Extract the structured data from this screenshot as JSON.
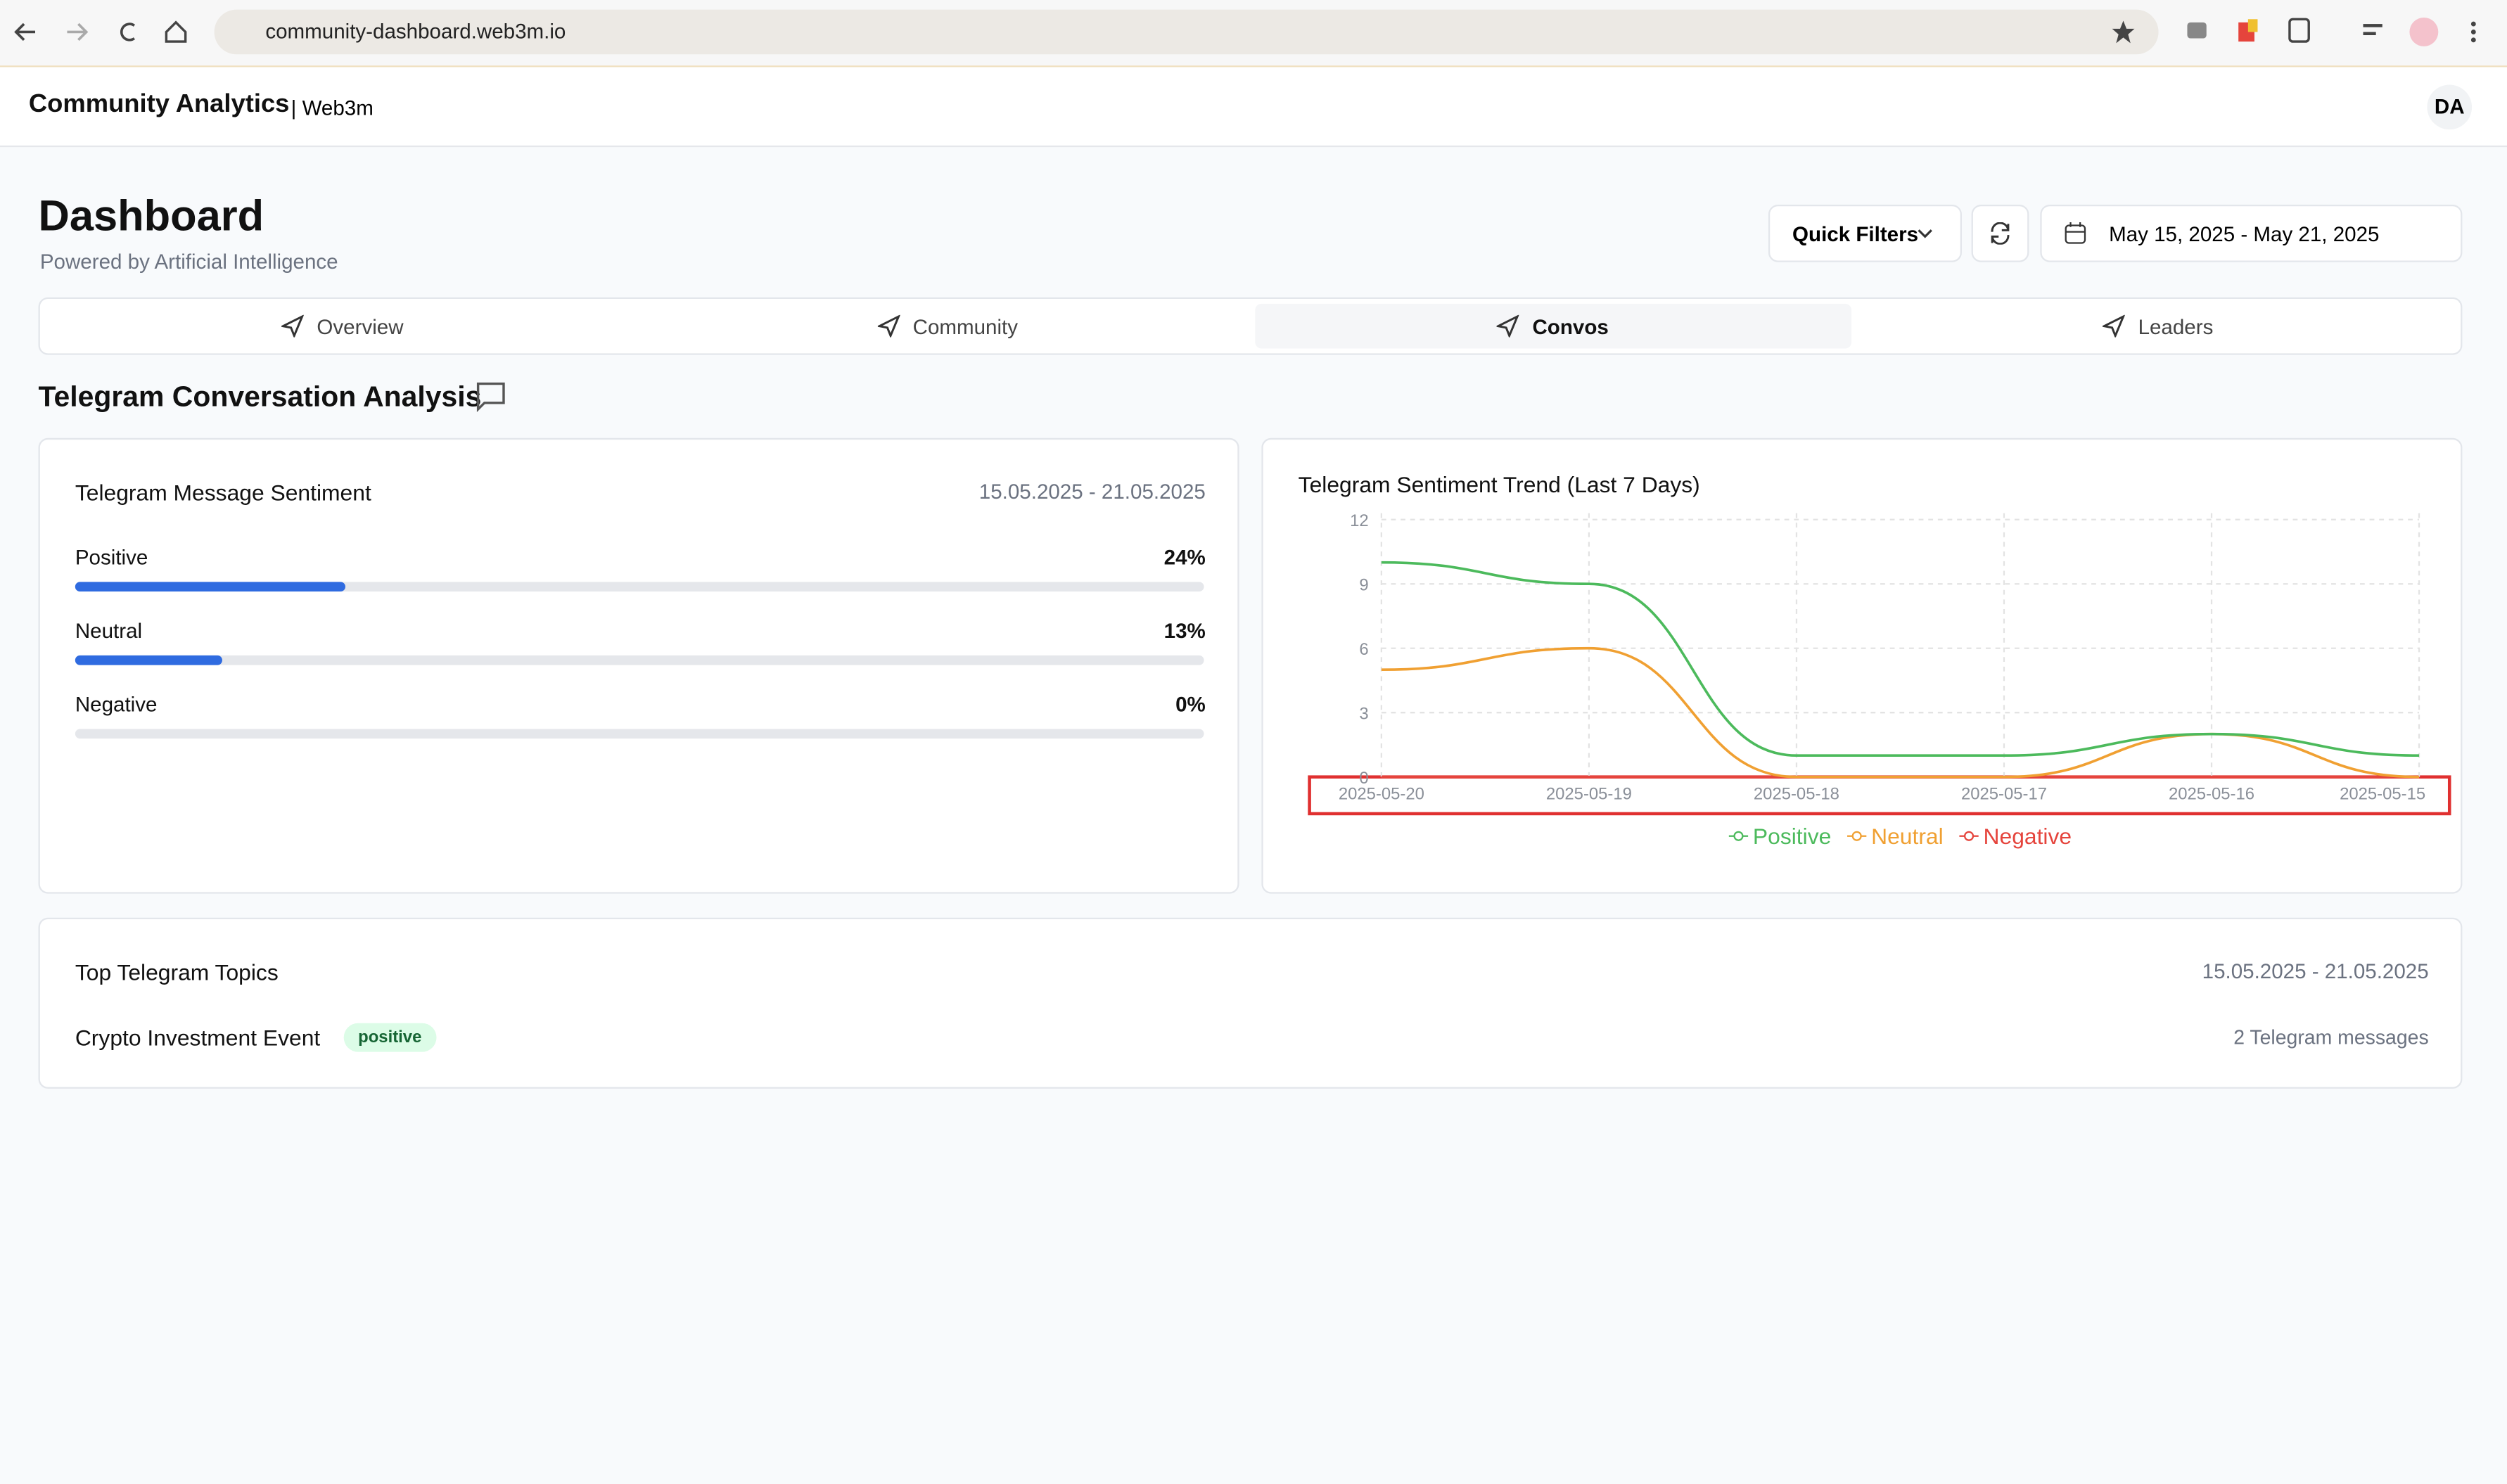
{
  "browser": {
    "url": "community-dashboard.web3m.io"
  },
  "header": {
    "title": "Community Analytics",
    "subtitle": "| Web3m",
    "avatar": "DA"
  },
  "page": {
    "title": "Dashboard",
    "subtitle": "Powered by Artificial Intelligence",
    "quick_filters": "Quick Filters",
    "date_range": "May 15, 2025 - May 21, 2025"
  },
  "tabs": [
    "Overview",
    "Community",
    "Convos",
    "Leaders"
  ],
  "section_title": "Telegram Conversation Analysis",
  "sentiment": {
    "title": "Telegram Message Sentiment",
    "date_range": "15.05.2025 - 21.05.2025",
    "items": [
      {
        "label": "Positive",
        "value": 24,
        "value_label": "24%"
      },
      {
        "label": "Neutral",
        "value": 13,
        "value_label": "13%"
      },
      {
        "label": "Negative",
        "value": 0,
        "value_label": "0%"
      }
    ]
  },
  "chart_data": {
    "type": "line",
    "title": "Telegram Sentiment Trend (Last 7 Days)",
    "categories": [
      "2025-05-20",
      "2025-05-19",
      "2025-05-18",
      "2025-05-17",
      "2025-05-16",
      "2025-05-15"
    ],
    "series": [
      {
        "name": "Positive",
        "color": "#4cba5c",
        "values": [
          10,
          9,
          1,
          1,
          2,
          1
        ]
      },
      {
        "name": "Neutral",
        "color": "#f0a032",
        "values": [
          5,
          6,
          0,
          0,
          2,
          0
        ]
      },
      {
        "name": "Negative",
        "color": "#e5443c",
        "values": [
          0,
          0,
          0,
          0,
          0,
          0
        ]
      }
    ],
    "ylim": [
      0,
      12
    ],
    "yticks": [
      0,
      3,
      6,
      9,
      12
    ],
    "grid": true
  },
  "topics": {
    "title": "Top Telegram Topics",
    "date_range": "15.05.2025 - 21.05.2025",
    "items": [
      {
        "name": "Crypto Investment Event",
        "sentiment": "positive",
        "count": "2 Telegram messages"
      }
    ]
  }
}
